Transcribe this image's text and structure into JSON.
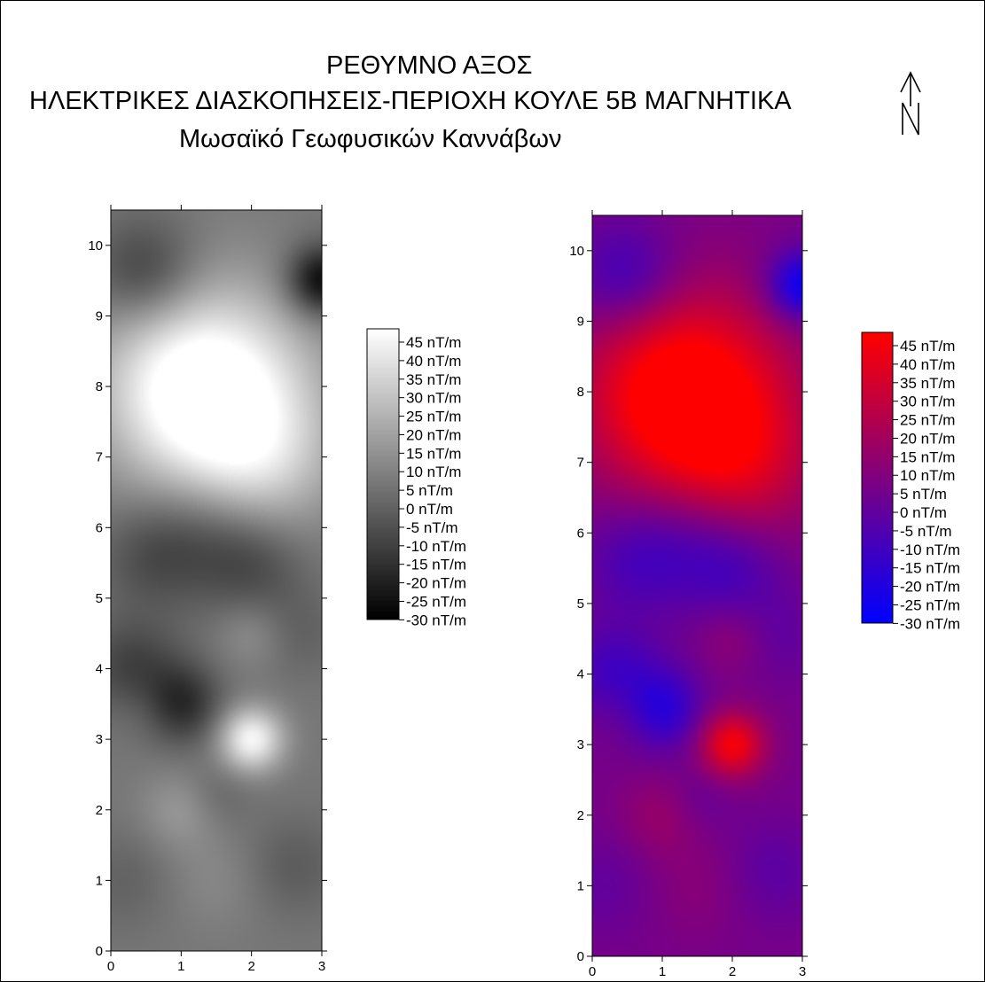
{
  "title": {
    "line1": "ΡΕΘΥΜΝΟ ΑΞΟΣ",
    "line2": "ΗΛΕΚΤΡΙΚΕΣ ΔΙΑΣΚΟΠΗΣΕΙΣ-ΠΕΡΙΟΧΗ ΚΟΥΛΕ 5Β ΜΑΓΝΗΤΙΚΑ",
    "line3": "Μωσαϊκό Γεωφυσικών Καννάβων"
  },
  "north_symbol": "north-arrow-icon",
  "chart_data": [
    {
      "type": "heatmap",
      "colormap": "grayscale",
      "colors": {
        "low": "#000000",
        "high": "#ffffff"
      },
      "xlim": [
        0,
        3
      ],
      "ylim": [
        0,
        10.5
      ],
      "x_ticks": [
        "0",
        "1",
        "2",
        "3"
      ],
      "y_ticks": [
        "0",
        "1",
        "2",
        "3",
        "4",
        "5",
        "6",
        "7",
        "8",
        "9",
        "10"
      ],
      "legend": {
        "placement": "right",
        "labels": [
          "45 nT/m",
          "40 nT/m",
          "35 nT/m",
          "30 nT/m",
          "25 nT/m",
          "20 nT/m",
          "15 nT/m",
          "10 nT/m",
          "5 nT/m",
          "0 nT/m",
          "-5 nT/m",
          "-10 nT/m",
          "-15 nT/m",
          "-20 nT/m",
          "-25 nT/m",
          "-30 nT/m"
        ]
      }
    },
    {
      "type": "heatmap",
      "colormap": "blue-red",
      "colors": {
        "low": "#0000ff",
        "high": "#ff0000"
      },
      "xlim": [
        0,
        3
      ],
      "ylim": [
        0,
        10.5
      ],
      "x_ticks": [
        "0",
        "1",
        "2",
        "3"
      ],
      "y_ticks": [
        "0",
        "1",
        "2",
        "3",
        "4",
        "5",
        "6",
        "7",
        "8",
        "9",
        "10"
      ],
      "legend": {
        "placement": "right",
        "labels": [
          "45 nT/m",
          "40 nT/m",
          "35 nT/m",
          "30 nT/m",
          "25 nT/m",
          "20 nT/m",
          "15 nT/m",
          "10 nT/m",
          "5 nT/m",
          "0 nT/m",
          "-5 nT/m",
          "-10 nT/m",
          "-15 nT/m",
          "-20 nT/m",
          "-25 nT/m",
          "-30 nT/m"
        ]
      }
    }
  ],
  "field": {
    "vmin": -30,
    "vmax": 45,
    "base": 5,
    "anomalies": [
      {
        "x": 1.75,
        "y": 7.5,
        "v": 28,
        "r": 0.95
      },
      {
        "x": 1.3,
        "y": 8.4,
        "v": 20,
        "r": 1.0
      },
      {
        "x": 0.9,
        "y": 7.9,
        "v": 15,
        "r": 0.9
      },
      {
        "x": 2.2,
        "y": 6.8,
        "v": 10,
        "r": 0.7
      },
      {
        "x": 2.0,
        "y": 3.0,
        "v": 38,
        "r": 0.32
      },
      {
        "x": 2.0,
        "y": 4.5,
        "v": 8,
        "r": 0.35
      },
      {
        "x": 1.0,
        "y": 2.0,
        "v": 10,
        "r": 0.4
      },
      {
        "x": 0.5,
        "y": 3.5,
        "v": 6,
        "r": 0.35
      },
      {
        "x": 1.5,
        "y": 1.0,
        "v": 5,
        "r": 0.5
      },
      {
        "x": 3.0,
        "y": 9.5,
        "v": -34,
        "r": 0.35
      },
      {
        "x": 0.5,
        "y": 9.6,
        "v": -20,
        "r": 0.55
      },
      {
        "x": 1.0,
        "y": 3.5,
        "v": -22,
        "r": 0.4
      },
      {
        "x": 0.3,
        "y": 4.0,
        "v": -16,
        "r": 0.5
      },
      {
        "x": 2.0,
        "y": 5.5,
        "v": -14,
        "r": 0.55
      },
      {
        "x": 0.6,
        "y": 5.6,
        "v": -12,
        "r": 0.55
      },
      {
        "x": 1.3,
        "y": 6.0,
        "v": -10,
        "r": 0.6
      },
      {
        "x": 1.5,
        "y": 2.2,
        "v": -6,
        "r": 0.35
      },
      {
        "x": 2.6,
        "y": 1.2,
        "v": -8,
        "r": 0.5
      },
      {
        "x": 2.7,
        "y": 4.5,
        "v": -6,
        "r": 0.45
      },
      {
        "x": 0.2,
        "y": 1.0,
        "v": -6,
        "r": 0.5
      }
    ]
  }
}
